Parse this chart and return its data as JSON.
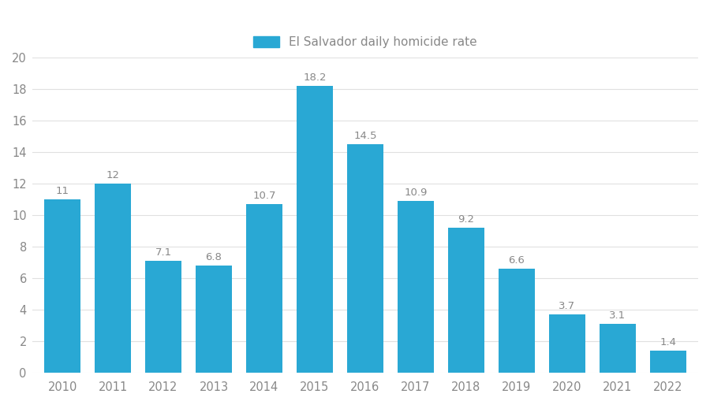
{
  "years": [
    "2010",
    "2011",
    "2012",
    "2013",
    "2014",
    "2015",
    "2016",
    "2017",
    "2018",
    "2019",
    "2020",
    "2021",
    "2022"
  ],
  "values": [
    11.0,
    12.0,
    7.1,
    6.8,
    10.7,
    18.2,
    14.5,
    10.9,
    9.2,
    6.6,
    3.7,
    3.1,
    1.4
  ],
  "labels": [
    "11",
    "12",
    "7.1",
    "6.8",
    "10.7",
    "18.2",
    "14.5",
    "10.9",
    "9.2",
    "6.6",
    "3.7",
    "3.1",
    "1.4"
  ],
  "bar_color": "#29a8d4",
  "background_color": "#ffffff",
  "legend_label": "El Salvador daily homicide rate",
  "ylim": [
    0,
    20
  ],
  "yticks": [
    0,
    2,
    4,
    6,
    8,
    10,
    12,
    14,
    16,
    18,
    20
  ],
  "label_fontsize": 9.5,
  "tick_fontsize": 10.5,
  "legend_fontsize": 11,
  "grid_color": "#e0e0e0",
  "text_color": "#888888",
  "bar_width": 0.72
}
